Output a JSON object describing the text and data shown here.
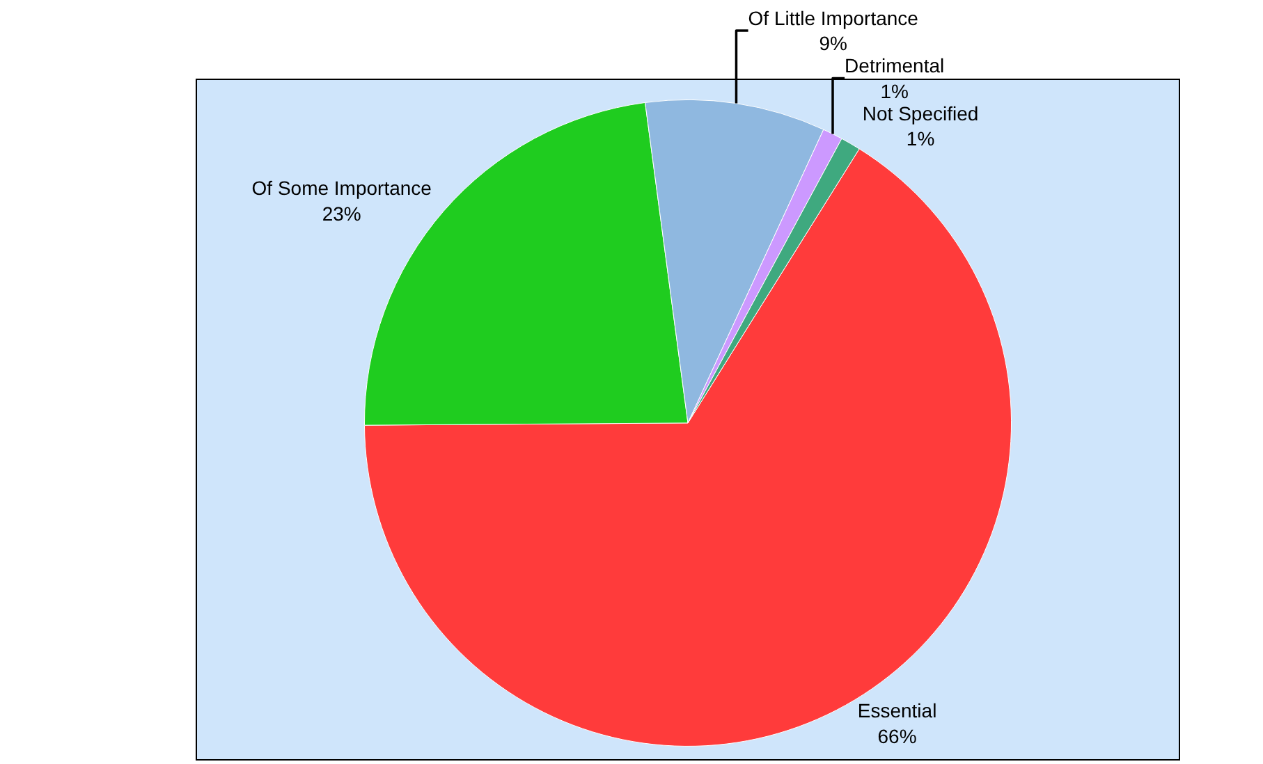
{
  "chart_data": {
    "type": "pie",
    "categories": [
      "Essential",
      "Of Some Importance",
      "Of Little Importance",
      "Detrimental",
      "Not Specified"
    ],
    "values": [
      66,
      23,
      9,
      1,
      1
    ],
    "value_labels": [
      "66%",
      "23%",
      "9%",
      "1%",
      "1%"
    ],
    "colors": [
      "#ff3b3b",
      "#1fcc1f",
      "#8fb8e0",
      "#cc99ff",
      "#3fa97f"
    ],
    "legend": false
  }
}
